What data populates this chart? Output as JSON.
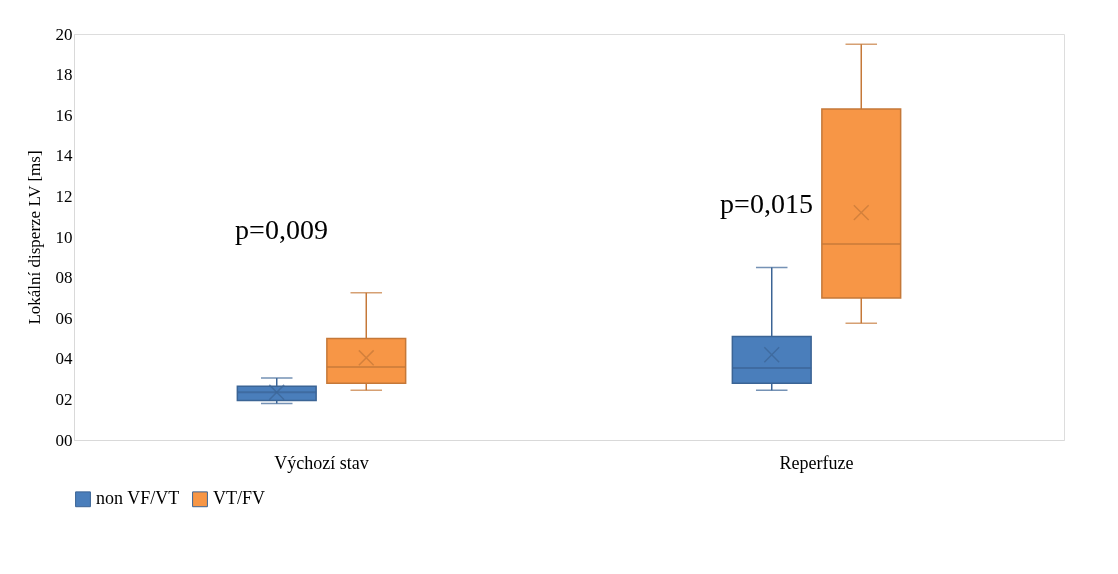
{
  "chart_data": {
    "type": "box",
    "ylabel": "Lokální disperze LV [ms]",
    "categories": [
      "Výchozí stav",
      "Reperfuze"
    ],
    "series": [
      {
        "name": "non VF/VT",
        "color": "#4a7ebb",
        "boxes": [
          {
            "low": 1.8,
            "q1": 1.95,
            "median": 2.35,
            "q3": 2.65,
            "high": 3.05,
            "mean": 2.35
          },
          {
            "low": 2.45,
            "q1": 2.8,
            "median": 3.55,
            "q3": 5.1,
            "high": 8.5,
            "mean": 4.2
          }
        ]
      },
      {
        "name": "VT/FV",
        "color": "#f79646",
        "boxes": [
          {
            "low": 2.45,
            "q1": 2.8,
            "median": 3.6,
            "q3": 5.0,
            "high": 7.25,
            "mean": 4.05
          },
          {
            "low": 5.75,
            "q1": 7.0,
            "median": 9.65,
            "q3": 16.3,
            "high": 19.5,
            "mean": 11.2
          }
        ]
      }
    ],
    "ylim": [
      0,
      20
    ],
    "yticks": [
      {
        "value": 0,
        "label": "00"
      },
      {
        "value": 2,
        "label": "02"
      },
      {
        "value": 4,
        "label": "04"
      },
      {
        "value": 6,
        "label": "06"
      },
      {
        "value": 8,
        "label": "08"
      },
      10,
      12,
      14,
      16,
      18,
      20
    ],
    "annotations": [
      "p=0,009",
      "p=0,015"
    ],
    "grid": false,
    "legend": "bottom"
  }
}
